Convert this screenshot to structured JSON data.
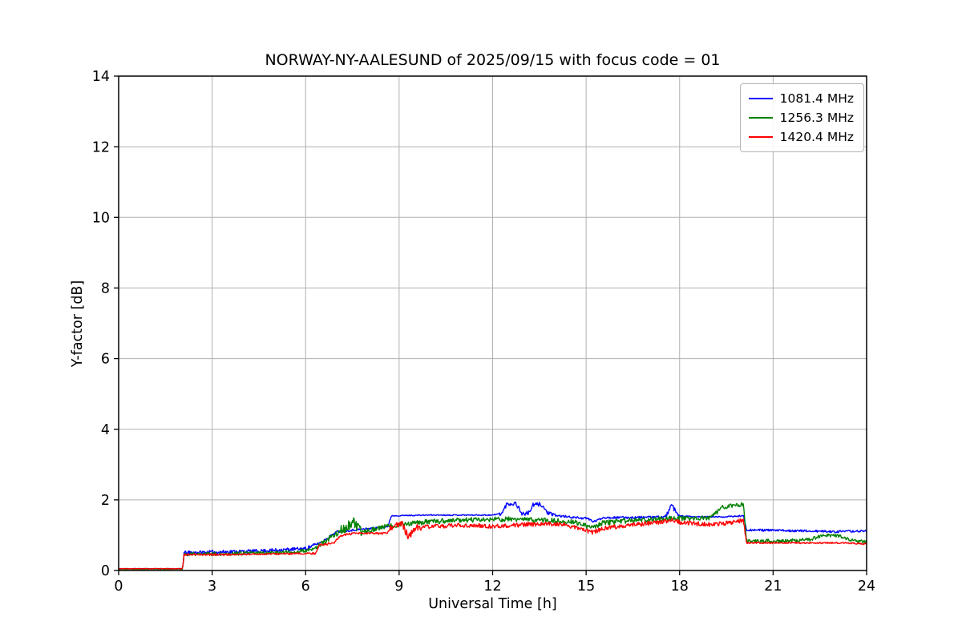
{
  "figure": {
    "background": "#ffffff"
  },
  "chart_data": {
    "type": "line",
    "title": "NORWAY-NY-AALESUND of 2025/09/15 with focus code = 01",
    "xlabel": "Universal Time [h]",
    "ylabel": "Y-factor [dB]",
    "xlim": [
      0,
      24
    ],
    "ylim": [
      0,
      14
    ],
    "xticks": [
      0,
      3,
      6,
      9,
      12,
      15,
      18,
      21,
      24
    ],
    "yticks": [
      0,
      2,
      4,
      6,
      8,
      10,
      12,
      14
    ],
    "grid": true,
    "grid_color": "#b0b0b0",
    "axis_color": "#000000",
    "legend_position": "upper right",
    "series": [
      {
        "name": "1081.4 MHz",
        "color": "#0000ff",
        "anchors": [
          [
            0,
            0.05
          ],
          [
            2.05,
            0.05
          ],
          [
            2.1,
            0.5
          ],
          [
            3,
            0.52
          ],
          [
            4.5,
            0.55
          ],
          [
            6,
            0.62
          ],
          [
            6.5,
            0.8
          ],
          [
            7,
            1.1
          ],
          [
            7.6,
            1.15
          ],
          [
            8.2,
            1.2
          ],
          [
            8.65,
            1.25
          ],
          [
            8.75,
            1.55
          ],
          [
            10,
            1.57
          ],
          [
            12,
            1.57
          ],
          [
            12.3,
            1.62
          ],
          [
            12.45,
            1.88
          ],
          [
            12.75,
            1.9
          ],
          [
            12.95,
            1.6
          ],
          [
            13.15,
            1.62
          ],
          [
            13.3,
            1.85
          ],
          [
            13.55,
            1.88
          ],
          [
            13.75,
            1.65
          ],
          [
            13.9,
            1.57
          ],
          [
            14.4,
            1.52
          ],
          [
            15.05,
            1.47
          ],
          [
            15.25,
            1.38
          ],
          [
            15.55,
            1.5
          ],
          [
            16.5,
            1.5
          ],
          [
            17.55,
            1.52
          ],
          [
            17.75,
            1.85
          ],
          [
            17.95,
            1.55
          ],
          [
            18.4,
            1.52
          ],
          [
            19.5,
            1.52
          ],
          [
            20.05,
            1.55
          ],
          [
            20.15,
            1.15
          ],
          [
            21.5,
            1.13
          ],
          [
            23,
            1.1
          ],
          [
            24,
            1.12
          ]
        ],
        "noise": [
          [
            0,
            2.05,
            0.01
          ],
          [
            2.05,
            6.3,
            0.05
          ],
          [
            6.3,
            8.7,
            0.03
          ],
          [
            8.7,
            12.2,
            0.015
          ],
          [
            12.2,
            14,
            0.06
          ],
          [
            14,
            17.55,
            0.03
          ],
          [
            17.55,
            18,
            0.06
          ],
          [
            18,
            20.1,
            0.02
          ],
          [
            20.1,
            24,
            0.03
          ]
        ]
      },
      {
        "name": "1256.3 MHz",
        "color": "#008000",
        "anchors": [
          [
            0,
            0.04
          ],
          [
            2.05,
            0.04
          ],
          [
            2.1,
            0.46
          ],
          [
            3.2,
            0.47
          ],
          [
            4.6,
            0.5
          ],
          [
            5.6,
            0.52
          ],
          [
            6.2,
            0.58
          ],
          [
            6.6,
            0.8
          ],
          [
            7,
            1.05
          ],
          [
            7.35,
            1.25
          ],
          [
            7.55,
            1.35
          ],
          [
            7.75,
            1.1
          ],
          [
            8.1,
            1.15
          ],
          [
            8.6,
            1.25
          ],
          [
            9.2,
            1.32
          ],
          [
            10,
            1.38
          ],
          [
            11,
            1.43
          ],
          [
            12.5,
            1.45
          ],
          [
            13.5,
            1.43
          ],
          [
            14.6,
            1.38
          ],
          [
            15.2,
            1.2
          ],
          [
            15.55,
            1.35
          ],
          [
            16.2,
            1.4
          ],
          [
            17.2,
            1.45
          ],
          [
            17.9,
            1.5
          ],
          [
            18.4,
            1.45
          ],
          [
            19,
            1.5
          ],
          [
            19.35,
            1.78
          ],
          [
            19.8,
            1.85
          ],
          [
            20.05,
            1.88
          ],
          [
            20.15,
            0.85
          ],
          [
            21.2,
            0.83
          ],
          [
            22.2,
            0.88
          ],
          [
            22.6,
            1.0
          ],
          [
            23.1,
            0.98
          ],
          [
            23.5,
            0.85
          ],
          [
            24,
            0.8
          ]
        ],
        "noise": [
          [
            0,
            2.05,
            0.01
          ],
          [
            2.05,
            6.3,
            0.05
          ],
          [
            6.3,
            7.1,
            0.08
          ],
          [
            7.1,
            7.8,
            0.15
          ],
          [
            7.8,
            8.7,
            0.07
          ],
          [
            8.7,
            19.2,
            0.07
          ],
          [
            19.2,
            20.1,
            0.06
          ],
          [
            20.1,
            24,
            0.05
          ]
        ]
      },
      {
        "name": "1420.4 MHz",
        "color": "#ff0000",
        "anchors": [
          [
            0,
            0.05
          ],
          [
            2.05,
            0.05
          ],
          [
            2.1,
            0.45
          ],
          [
            3.5,
            0.45
          ],
          [
            5,
            0.47
          ],
          [
            6.3,
            0.48
          ],
          [
            6.45,
            0.72
          ],
          [
            6.9,
            0.78
          ],
          [
            7.15,
            1.0
          ],
          [
            7.6,
            1.05
          ],
          [
            8.6,
            1.05
          ],
          [
            8.8,
            1.28
          ],
          [
            9.1,
            1.3
          ],
          [
            9.3,
            0.95
          ],
          [
            9.55,
            1.22
          ],
          [
            10.2,
            1.25
          ],
          [
            11,
            1.28
          ],
          [
            12,
            1.25
          ],
          [
            13.2,
            1.3
          ],
          [
            13.6,
            1.33
          ],
          [
            14.3,
            1.3
          ],
          [
            15.2,
            1.08
          ],
          [
            15.6,
            1.2
          ],
          [
            16.3,
            1.28
          ],
          [
            17.2,
            1.35
          ],
          [
            17.8,
            1.43
          ],
          [
            18.1,
            1.35
          ],
          [
            19,
            1.3
          ],
          [
            19.6,
            1.35
          ],
          [
            20.05,
            1.42
          ],
          [
            20.15,
            0.78
          ],
          [
            22,
            0.78
          ],
          [
            23.3,
            0.78
          ],
          [
            24,
            0.75
          ]
        ],
        "noise": [
          [
            0,
            2.05,
            0.008
          ],
          [
            2.05,
            6.4,
            0.025
          ],
          [
            6.4,
            8.7,
            0.03
          ],
          [
            8.7,
            9.7,
            0.1
          ],
          [
            9.7,
            20.1,
            0.06
          ],
          [
            20.1,
            24,
            0.02
          ]
        ]
      }
    ]
  }
}
